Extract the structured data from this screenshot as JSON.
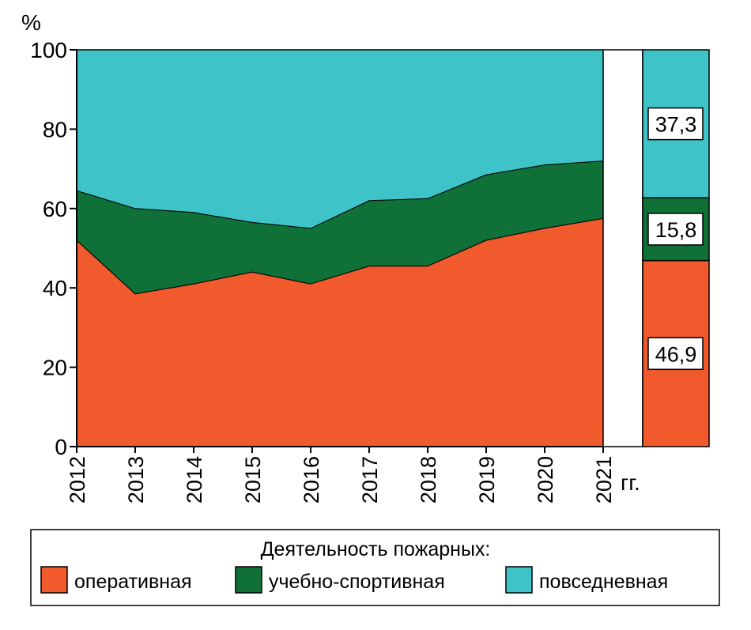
{
  "chart_data": {
    "type": "area",
    "stacked": true,
    "y_unit_label": "%",
    "x_unit_label": "гг.",
    "ylim": [
      0,
      100
    ],
    "y_ticks": [
      0,
      20,
      40,
      60,
      80,
      100
    ],
    "x": [
      "2012",
      "2013",
      "2014",
      "2015",
      "2016",
      "2017",
      "2018",
      "2019",
      "2020",
      "2021"
    ],
    "series": [
      {
        "name": "оперативная",
        "color": "#f05a2d",
        "values": [
          52,
          38.5,
          41,
          44,
          41,
          45.5,
          45.5,
          52,
          55,
          57.5
        ]
      },
      {
        "name": "учебно-спортивная",
        "color": "#0f7038",
        "values": [
          12.5,
          21.5,
          18,
          12.5,
          14,
          16.5,
          17,
          16.5,
          16,
          14.5
        ]
      },
      {
        "name": "повседневная",
        "color": "#3ec3c8",
        "values": [
          35.5,
          40,
          41,
          43.5,
          45,
          38,
          37.5,
          31.5,
          29,
          28
        ]
      }
    ],
    "summary_bar": {
      "values": [
        46.9,
        15.8,
        37.3
      ],
      "labels": [
        "46,9",
        "15,8",
        "37,3"
      ]
    },
    "legend": {
      "title": "Деятельность пожарных:",
      "position": "bottom"
    }
  }
}
